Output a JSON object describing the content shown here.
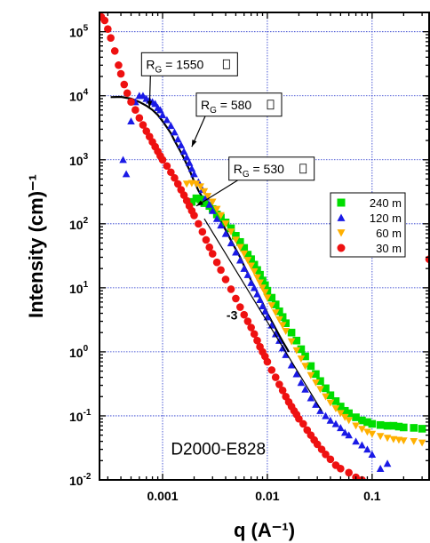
{
  "chart_data": {
    "type": "scatter",
    "title": "",
    "xlabel": "q (A⁻¹)",
    "ylabel": "Intensity (cm)⁻¹",
    "xscale": "log",
    "yscale": "log",
    "xlim": [
      0.00025,
      0.35
    ],
    "ylim": [
      0.01,
      200000
    ],
    "grid": true,
    "legend_position": "right",
    "x_ticks": [
      {
        "value": 0.001,
        "label": "0.001"
      },
      {
        "value": 0.01,
        "label": "0.01"
      },
      {
        "value": 0.1,
        "label": "0.1"
      }
    ],
    "y_ticks": [
      {
        "value": 100000,
        "base": "10",
        "exp": "5"
      },
      {
        "value": 10000,
        "base": "10",
        "exp": "4"
      },
      {
        "value": 1000,
        "base": "10",
        "exp": "3"
      },
      {
        "value": 100,
        "base": "10",
        "exp": "2"
      },
      {
        "value": 10,
        "base": "10",
        "exp": "1"
      },
      {
        "value": 1,
        "base": "10",
        "exp": "0"
      },
      {
        "value": 0.1,
        "base": "10",
        "exp": "-1"
      },
      {
        "value": 0.01,
        "base": "10",
        "exp": "-2"
      }
    ],
    "series": [
      {
        "name": "240 m",
        "marker": "square",
        "color": "#00dd00",
        "points": [
          [
            0.0019,
            220
          ],
          [
            0.0021,
            250
          ],
          [
            0.0023,
            240
          ],
          [
            0.0025,
            210
          ],
          [
            0.0028,
            190
          ],
          [
            0.003,
            170
          ],
          [
            0.0033,
            140
          ],
          [
            0.0036,
            125
          ],
          [
            0.004,
            105
          ],
          [
            0.0045,
            85
          ],
          [
            0.005,
            65
          ],
          [
            0.0055,
            52
          ],
          [
            0.006,
            42
          ],
          [
            0.0065,
            33
          ],
          [
            0.007,
            28
          ],
          [
            0.0075,
            23
          ],
          [
            0.008,
            19
          ],
          [
            0.0085,
            16
          ],
          [
            0.009,
            13
          ],
          [
            0.0095,
            11
          ],
          [
            0.01,
            9
          ],
          [
            0.011,
            7
          ],
          [
            0.012,
            5.5
          ],
          [
            0.013,
            4.3
          ],
          [
            0.014,
            3.5
          ],
          [
            0.015,
            2.8
          ],
          [
            0.017,
            2
          ],
          [
            0.019,
            1.5
          ],
          [
            0.021,
            1.1
          ],
          [
            0.023,
            0.85
          ],
          [
            0.026,
            0.6
          ],
          [
            0.029,
            0.45
          ],
          [
            0.032,
            0.35
          ],
          [
            0.036,
            0.27
          ],
          [
            0.04,
            0.21
          ],
          [
            0.045,
            0.17
          ],
          [
            0.05,
            0.14
          ],
          [
            0.055,
            0.12
          ],
          [
            0.06,
            0.11
          ],
          [
            0.07,
            0.095
          ],
          [
            0.08,
            0.085
          ],
          [
            0.09,
            0.08
          ],
          [
            0.1,
            0.075
          ],
          [
            0.12,
            0.072
          ],
          [
            0.14,
            0.07
          ],
          [
            0.16,
            0.07
          ],
          [
            0.18,
            0.068
          ],
          [
            0.2,
            0.066
          ],
          [
            0.25,
            0.065
          ],
          [
            0.3,
            0.063
          ]
        ]
      },
      {
        "name": "120 m",
        "marker": "triangle-up",
        "color": "#1a1ae6",
        "points": [
          [
            0.00042,
            1000
          ],
          [
            0.00045,
            600
          ],
          [
            0.0005,
            4000
          ],
          [
            0.00055,
            8000
          ],
          [
            0.0006,
            10000
          ],
          [
            0.00065,
            10000
          ],
          [
            0.0007,
            9000
          ],
          [
            0.00075,
            8500
          ],
          [
            0.0008,
            8000
          ],
          [
            0.00085,
            7500
          ],
          [
            0.0009,
            6500
          ],
          [
            0.00095,
            6000
          ],
          [
            0.001,
            5000
          ],
          [
            0.0011,
            4200
          ],
          [
            0.0012,
            3400
          ],
          [
            0.0013,
            2700
          ],
          [
            0.0014,
            2100
          ],
          [
            0.0015,
            1700
          ],
          [
            0.0016,
            1350
          ],
          [
            0.0017,
            1100
          ],
          [
            0.0018,
            900
          ],
          [
            0.0019,
            730
          ],
          [
            0.002,
            600
          ],
          [
            0.0022,
            450
          ],
          [
            0.0024,
            340
          ],
          [
            0.0026,
            260
          ],
          [
            0.0028,
            200
          ],
          [
            0.003,
            160
          ],
          [
            0.0033,
            120
          ],
          [
            0.0036,
            95
          ],
          [
            0.004,
            70
          ],
          [
            0.0045,
            50
          ],
          [
            0.005,
            36
          ],
          [
            0.0055,
            27
          ],
          [
            0.006,
            20
          ],
          [
            0.0065,
            16
          ],
          [
            0.007,
            12
          ],
          [
            0.0075,
            10
          ],
          [
            0.008,
            8
          ],
          [
            0.0085,
            6.5
          ],
          [
            0.009,
            5.2
          ],
          [
            0.0095,
            4.3
          ],
          [
            0.01,
            3.5
          ],
          [
            0.011,
            2.6
          ],
          [
            0.012,
            1.9
          ],
          [
            0.013,
            1.5
          ],
          [
            0.014,
            1.15
          ],
          [
            0.015,
            0.9
          ],
          [
            0.017,
            0.62
          ],
          [
            0.019,
            0.45
          ],
          [
            0.021,
            0.33
          ],
          [
            0.023,
            0.26
          ],
          [
            0.026,
            0.19
          ],
          [
            0.029,
            0.15
          ],
          [
            0.032,
            0.12
          ],
          [
            0.036,
            0.1
          ],
          [
            0.04,
            0.085
          ],
          [
            0.045,
            0.075
          ],
          [
            0.05,
            0.065
          ],
          [
            0.055,
            0.055
          ],
          [
            0.06,
            0.05
          ],
          [
            0.07,
            0.04
          ],
          [
            0.08,
            0.035
          ],
          [
            0.09,
            0.03
          ],
          [
            0.1,
            0.025
          ],
          [
            0.12,
            0.015
          ],
          [
            0.14,
            0.018
          ]
        ]
      },
      {
        "name": "60 m",
        "marker": "triangle-down",
        "color": "#ffb000",
        "points": [
          [
            0.0017,
            420
          ],
          [
            0.0019,
            430
          ],
          [
            0.0021,
            420
          ],
          [
            0.0023,
            380
          ],
          [
            0.0025,
            320
          ],
          [
            0.0027,
            270
          ],
          [
            0.003,
            220
          ],
          [
            0.0033,
            170
          ],
          [
            0.0036,
            135
          ],
          [
            0.004,
            100
          ],
          [
            0.0045,
            75
          ],
          [
            0.005,
            56
          ],
          [
            0.0055,
            43
          ],
          [
            0.006,
            34
          ],
          [
            0.0065,
            27
          ],
          [
            0.007,
            22
          ],
          [
            0.0075,
            18
          ],
          [
            0.008,
            14.5
          ],
          [
            0.0085,
            12
          ],
          [
            0.009,
            10
          ],
          [
            0.0095,
            8.5
          ],
          [
            0.01,
            7
          ],
          [
            0.011,
            5.3
          ],
          [
            0.012,
            4.1
          ],
          [
            0.013,
            3.2
          ],
          [
            0.014,
            2.6
          ],
          [
            0.015,
            2.1
          ],
          [
            0.017,
            1.45
          ],
          [
            0.019,
            1.05
          ],
          [
            0.021,
            0.78
          ],
          [
            0.023,
            0.6
          ],
          [
            0.026,
            0.43
          ],
          [
            0.029,
            0.33
          ],
          [
            0.032,
            0.26
          ],
          [
            0.036,
            0.2
          ],
          [
            0.04,
            0.16
          ],
          [
            0.045,
            0.13
          ],
          [
            0.05,
            0.11
          ],
          [
            0.055,
            0.095
          ],
          [
            0.06,
            0.085
          ],
          [
            0.07,
            0.07
          ],
          [
            0.08,
            0.062
          ],
          [
            0.09,
            0.056
          ],
          [
            0.1,
            0.052
          ],
          [
            0.12,
            0.048
          ],
          [
            0.14,
            0.045
          ],
          [
            0.16,
            0.043
          ],
          [
            0.18,
            0.042
          ],
          [
            0.2,
            0.041
          ],
          [
            0.25,
            0.04
          ],
          [
            0.3,
            0.038
          ]
        ]
      },
      {
        "name": "30 m",
        "marker": "circle",
        "color": "#ee1111",
        "points": [
          [
            0.00026,
            170000
          ],
          [
            0.00028,
            150000
          ],
          [
            0.0003,
            110000
          ],
          [
            0.00032,
            80000
          ],
          [
            0.00035,
            50000
          ],
          [
            0.00038,
            30000
          ],
          [
            0.0004,
            22000
          ],
          [
            0.00043,
            15000
          ],
          [
            0.00046,
            11000
          ],
          [
            0.0005,
            8000
          ],
          [
            0.00055,
            6000
          ],
          [
            0.0006,
            4500
          ],
          [
            0.00065,
            3500
          ],
          [
            0.0007,
            2800
          ],
          [
            0.00075,
            2300
          ],
          [
            0.0008,
            1900
          ],
          [
            0.00085,
            1600
          ],
          [
            0.0009,
            1350
          ],
          [
            0.00095,
            1150
          ],
          [
            0.001,
            1000
          ],
          [
            0.0011,
            800
          ],
          [
            0.0012,
            640
          ],
          [
            0.0013,
            520
          ],
          [
            0.0014,
            420
          ],
          [
            0.0015,
            340
          ],
          [
            0.0016,
            280
          ],
          [
            0.0017,
            230
          ],
          [
            0.0018,
            190
          ],
          [
            0.0019,
            160
          ],
          [
            0.002,
            135
          ],
          [
            0.0022,
            100
          ],
          [
            0.0024,
            75
          ],
          [
            0.0026,
            56
          ],
          [
            0.0028,
            43
          ],
          [
            0.003,
            34
          ],
          [
            0.0033,
            25
          ],
          [
            0.0036,
            19
          ],
          [
            0.004,
            13.5
          ],
          [
            0.0045,
            9.5
          ],
          [
            0.005,
            6.8
          ],
          [
            0.0055,
            5
          ],
          [
            0.006,
            3.8
          ],
          [
            0.0065,
            3
          ],
          [
            0.007,
            2.4
          ],
          [
            0.0075,
            1.9
          ],
          [
            0.008,
            1.5
          ],
          [
            0.0085,
            1.2
          ],
          [
            0.009,
            1
          ],
          [
            0.0095,
            0.85
          ],
          [
            0.01,
            0.7
          ],
          [
            0.011,
            0.52
          ],
          [
            0.012,
            0.4
          ],
          [
            0.013,
            0.31
          ],
          [
            0.014,
            0.25
          ],
          [
            0.015,
            0.2
          ],
          [
            0.016,
            0.165
          ],
          [
            0.017,
            0.14
          ],
          [
            0.018,
            0.12
          ],
          [
            0.019,
            0.105
          ],
          [
            0.02,
            0.09
          ],
          [
            0.022,
            0.075
          ],
          [
            0.024,
            0.06
          ],
          [
            0.026,
            0.05
          ],
          [
            0.028,
            0.042
          ],
          [
            0.03,
            0.036
          ],
          [
            0.033,
            0.03
          ],
          [
            0.036,
            0.025
          ],
          [
            0.04,
            0.021
          ],
          [
            0.045,
            0.017
          ],
          [
            0.05,
            0.015
          ],
          [
            0.06,
            0.013
          ],
          [
            0.07,
            0.011
          ],
          [
            0.08,
            0.01
          ],
          [
            0.35,
            28
          ]
        ]
      }
    ],
    "fit_curve": {
      "color": "#000000",
      "points": [
        [
          0.00032,
          9500
        ],
        [
          0.0004,
          9600
        ],
        [
          0.0005,
          9000
        ],
        [
          0.0006,
          8000
        ],
        [
          0.0007,
          7000
        ],
        [
          0.0008,
          6000
        ],
        [
          0.0009,
          5000
        ],
        [
          0.001,
          4000
        ],
        [
          0.0011,
          3200
        ],
        [
          0.0012,
          2600
        ],
        [
          0.0013,
          2000
        ],
        [
          0.0014,
          1600
        ],
        [
          0.0015,
          1300
        ],
        [
          0.0016,
          1050
        ],
        [
          0.0017,
          850
        ],
        [
          0.0018,
          700
        ],
        [
          0.0019,
          560
        ],
        [
          0.002,
          460
        ],
        [
          0.0022,
          330
        ],
        [
          0.0024,
          260
        ],
        [
          0.0026,
          230
        ],
        [
          0.0028,
          210
        ],
        [
          0.003,
          180
        ],
        [
          0.0033,
          140
        ],
        [
          0.0036,
          110
        ],
        [
          0.004,
          80
        ],
        [
          0.0045,
          55
        ],
        [
          0.005,
          40
        ],
        [
          0.0055,
          30
        ],
        [
          0.006,
          22
        ],
        [
          0.0065,
          17
        ],
        [
          0.007,
          13
        ],
        [
          0.0075,
          10.5
        ],
        [
          0.008,
          8.5
        ],
        [
          0.0085,
          7
        ],
        [
          0.009,
          5.8
        ],
        [
          0.0095,
          4.8
        ],
        [
          0.01,
          4
        ],
        [
          0.011,
          3
        ],
        [
          0.012,
          2.3
        ],
        [
          0.013,
          1.8
        ],
        [
          0.014,
          1.45
        ],
        [
          0.015,
          1.2
        ],
        [
          0.016,
          1
        ]
      ]
    },
    "slope_line": {
      "from": [
        0.0025,
        120
      ],
      "to": [
        0.033,
        0.12
      ],
      "label": "-3",
      "label_at": [
        0.0046,
        3.2
      ]
    },
    "annotations": [
      {
        "text_main": "R",
        "text_sub": "G",
        "text_rest": " = 1550 ",
        "box_at": [
          0.00063,
          47000
        ],
        "arrow_to": [
          0.00075,
          6500
        ]
      },
      {
        "text_main": "R",
        "text_sub": "G",
        "text_rest": " = 580 ",
        "box_at": [
          0.0021,
          11000
        ],
        "arrow_to": [
          0.0019,
          1600
        ]
      },
      {
        "text_main": "R",
        "text_sub": "G",
        "text_rest": " = 530 ",
        "box_at": [
          0.0043,
          1100
        ],
        "arrow_to": [
          0.0021,
          190
        ]
      }
    ],
    "sample_label": {
      "text": "D2000-E828",
      "at": [
        0.0012,
        0.025
      ]
    }
  }
}
